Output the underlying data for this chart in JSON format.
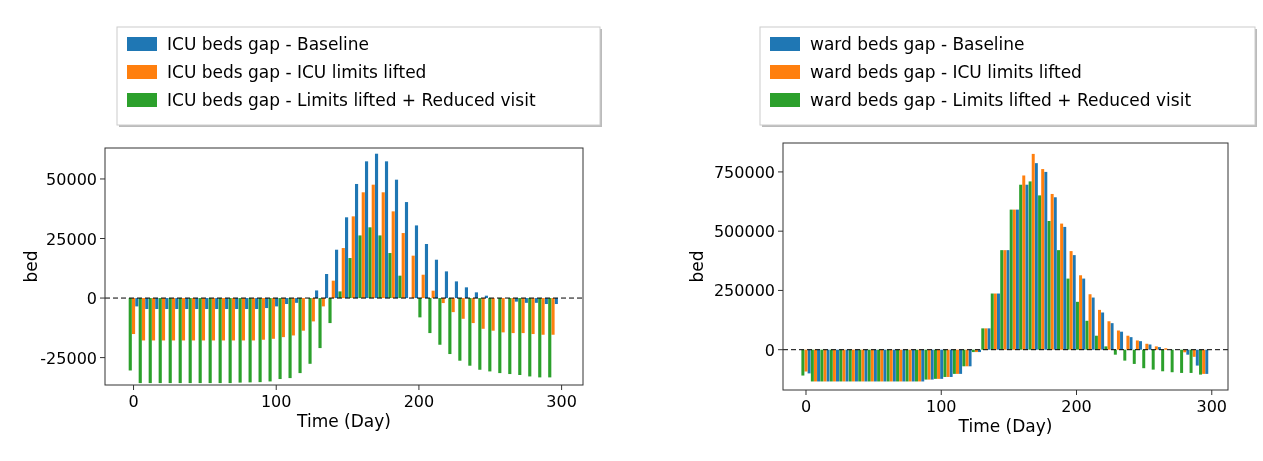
{
  "chart_data": [
    {
      "type": "bar",
      "xlabel": "Time (Day)",
      "ylabel": "bed",
      "legend": "top",
      "grid": false,
      "x": [
        0,
        7,
        14,
        21,
        28,
        35,
        42,
        49,
        56,
        63,
        70,
        77,
        84,
        91,
        98,
        105,
        112,
        119,
        126,
        133,
        140,
        147,
        154,
        161,
        168,
        175,
        182,
        189,
        196,
        203,
        210,
        217,
        224,
        231,
        238,
        245,
        252,
        259,
        266,
        273,
        280,
        287,
        294
      ],
      "xlim": [
        -20,
        315
      ],
      "xticks": [
        0,
        100,
        200,
        300
      ],
      "ylim": [
        -36500,
        63000
      ],
      "yticks": [
        -25000,
        0,
        25000,
        50000
      ],
      "ref_lines": [
        {
          "axis": "y",
          "value": 0,
          "color": "#000000",
          "line_style": "dashed"
        }
      ],
      "series": [
        {
          "name": "ICU beds gap - Baseline",
          "color": "#1f77b4",
          "values": [
            -3500,
            -4600,
            -4600,
            -4600,
            -4600,
            -4600,
            -4600,
            -4600,
            -4600,
            -4600,
            -4600,
            -4600,
            -4600,
            -4200,
            -3500,
            -2500,
            -2000,
            null,
            3200,
            10100,
            20300,
            33900,
            47900,
            57400,
            60600,
            57400,
            49700,
            40300,
            30500,
            22700,
            16100,
            11200,
            7000,
            4500,
            2400,
            1000,
            null,
            null,
            -1500,
            -2000,
            -2000,
            -2500,
            -2500
          ]
        },
        {
          "name": "ICU beds gap - ICU limits lifted",
          "color": "#ff7f0e",
          "values": [
            -15100,
            -17800,
            -17800,
            -17800,
            -17800,
            -17800,
            -17800,
            -17800,
            -17800,
            -17800,
            -17800,
            -17800,
            -17800,
            -17500,
            -17100,
            -16400,
            -15700,
            -13700,
            -9800,
            -3500,
            7300,
            21000,
            34300,
            44400,
            47600,
            44400,
            36400,
            27300,
            17800,
            9800,
            3100,
            -2100,
            -5900,
            -8700,
            -10500,
            -12900,
            -13700,
            -14400,
            -14700,
            -14700,
            -15100,
            -15400,
            -15400
          ]
        },
        {
          "name": "ICU beds gap - Limits lifted + Reduced visit",
          "color": "#2ca02c",
          "values": [
            -30400,
            -35700,
            -35700,
            -35700,
            -35700,
            -35700,
            -35700,
            -35700,
            -35700,
            -35700,
            -35700,
            -35500,
            -35400,
            -35300,
            -35000,
            -34000,
            -33600,
            -31500,
            -27600,
            -21000,
            -10500,
            2800,
            16800,
            26300,
            29700,
            26300,
            18900,
            9400,
            0,
            -8100,
            -14700,
            -19600,
            -23500,
            -26300,
            -28400,
            -30100,
            -30800,
            -31500,
            -31900,
            -32300,
            -32900,
            -33300,
            -33300
          ]
        }
      ]
    },
    {
      "type": "bar",
      "xlabel": "Time (Day)",
      "ylabel": "bed",
      "legend": "top",
      "grid": false,
      "x": [
        0,
        7,
        14,
        21,
        28,
        35,
        42,
        49,
        56,
        63,
        70,
        77,
        84,
        91,
        98,
        105,
        112,
        119,
        126,
        133,
        140,
        147,
        154,
        161,
        168,
        175,
        182,
        189,
        196,
        203,
        210,
        217,
        224,
        231,
        238,
        245,
        252,
        259,
        266,
        273,
        280,
        287,
        294
      ],
      "xlim": [
        -17,
        312
      ],
      "xticks": [
        0,
        100,
        200,
        300
      ],
      "ylim": [
        -170000,
        872000
      ],
      "yticks": [
        0,
        250000,
        500000,
        750000
      ],
      "ref_lines": [
        {
          "axis": "y",
          "value": 0,
          "color": "#000000",
          "line_style": "dashed"
        }
      ],
      "series": [
        {
          "name": "ward beds gap - Baseline",
          "color": "#1f77b4",
          "values": [
            -100000,
            -134000,
            -134000,
            -134000,
            -134000,
            -134000,
            -134000,
            -134000,
            -134000,
            -134000,
            -134000,
            -134000,
            -134000,
            -126000,
            -123000,
            -115000,
            -102000,
            -70000,
            -10000,
            90000,
            237000,
            420000,
            591000,
            696000,
            787000,
            750000,
            643000,
            518000,
            399000,
            300000,
            220000,
            157000,
            112000,
            76000,
            53000,
            36000,
            22000,
            11000,
            null,
            0,
            -21000,
            -67000,
            -102000
          ]
        },
        {
          "name": "ward beds gap - ICU limits lifted",
          "color": "#ff7f0e",
          "values": [
            -92000,
            -134000,
            -134000,
            -134000,
            -134000,
            -134000,
            -134000,
            -134000,
            -134000,
            -134000,
            -134000,
            -134000,
            -134000,
            -126000,
            -123000,
            -115000,
            -102000,
            -70000,
            -10000,
            90000,
            237000,
            420000,
            591000,
            735000,
            826000,
            762000,
            657000,
            532000,
            416000,
            314000,
            234000,
            168000,
            120000,
            81000,
            59000,
            39000,
            25000,
            14000,
            6000,
            0,
            -11000,
            -30000,
            -102000
          ]
        },
        {
          "name": "ward beds gap - Limits lifted + Reduced visit",
          "color": "#2ca02c",
          "values": [
            -109000,
            -134000,
            -134000,
            -134000,
            -134000,
            -134000,
            -134000,
            -134000,
            -134000,
            -134000,
            -134000,
            -134000,
            -134000,
            -126000,
            -123000,
            -115000,
            -102000,
            -70000,
            -10000,
            90000,
            237000,
            420000,
            591000,
            696000,
            710000,
            651000,
            543000,
            420000,
            300000,
            202000,
            122000,
            59000,
            14000,
            -21000,
            -46000,
            -60000,
            -78000,
            -84000,
            -91000,
            -95000,
            -98000,
            -98000,
            -105000
          ]
        }
      ]
    }
  ]
}
